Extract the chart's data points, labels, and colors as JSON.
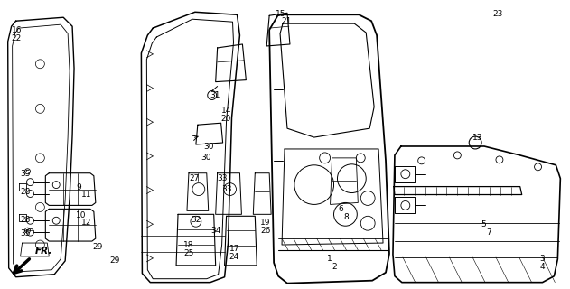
{
  "bg_color": "#ffffff",
  "line_color": "#000000",
  "figsize": [
    6.31,
    3.2
  ],
  "dpi": 100,
  "label_positions": [
    [
      "16",
      10,
      28
    ],
    [
      "22",
      10,
      37
    ],
    [
      "15",
      305,
      10
    ],
    [
      "21",
      311,
      18
    ],
    [
      "23",
      547,
      10
    ],
    [
      "31",
      232,
      100
    ],
    [
      "14",
      244,
      118
    ],
    [
      "20",
      244,
      127
    ],
    [
      "30",
      224,
      158
    ],
    [
      "30",
      221,
      170
    ],
    [
      "13",
      525,
      148
    ],
    [
      "27",
      208,
      193
    ],
    [
      "33",
      240,
      193
    ],
    [
      "33",
      245,
      205
    ],
    [
      "9",
      82,
      203
    ],
    [
      "11",
      88,
      211
    ],
    [
      "28",
      20,
      208
    ],
    [
      "10",
      82,
      235
    ],
    [
      "12",
      88,
      243
    ],
    [
      "28",
      20,
      240
    ],
    [
      "35",
      20,
      188
    ],
    [
      "35",
      20,
      255
    ],
    [
      "29",
      100,
      270
    ],
    [
      "29",
      120,
      285
    ],
    [
      "32",
      210,
      240
    ],
    [
      "34",
      233,
      252
    ],
    [
      "19",
      288,
      243
    ],
    [
      "26",
      288,
      252
    ],
    [
      "18",
      202,
      268
    ],
    [
      "25",
      202,
      277
    ],
    [
      "17",
      253,
      272
    ],
    [
      "24",
      253,
      281
    ],
    [
      "6",
      375,
      228
    ],
    [
      "8",
      381,
      237
    ],
    [
      "1",
      362,
      283
    ],
    [
      "2",
      368,
      292
    ],
    [
      "5",
      534,
      245
    ],
    [
      "7",
      540,
      254
    ],
    [
      "3",
      600,
      283
    ],
    [
      "4",
      600,
      292
    ]
  ]
}
